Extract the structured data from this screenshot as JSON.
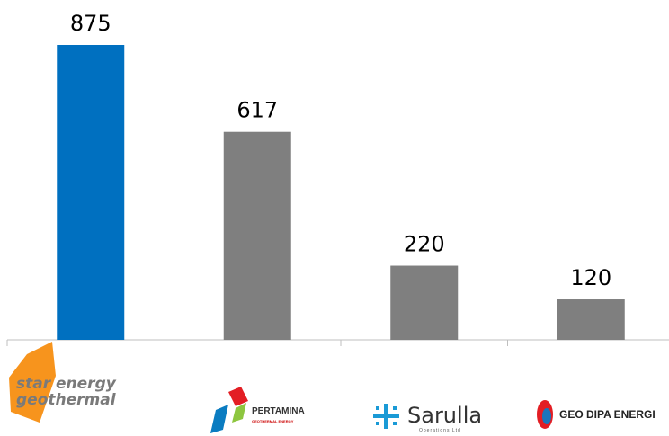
{
  "chart_data": {
    "type": "bar",
    "categories": [
      "star energy geothermal",
      "PERTAMINA",
      "Sarulla",
      "GEO DIPA ENERGI"
    ],
    "category_subtexts": [
      null,
      "GEOTHERMAL ENERGY",
      "Operations Ltd",
      null
    ],
    "values": [
      875,
      617,
      220,
      120
    ],
    "colors": [
      "#0070c0",
      "#7f7f7f",
      "#7f7f7f",
      "#7f7f7f"
    ],
    "ylim": [
      0,
      875
    ]
  }
}
